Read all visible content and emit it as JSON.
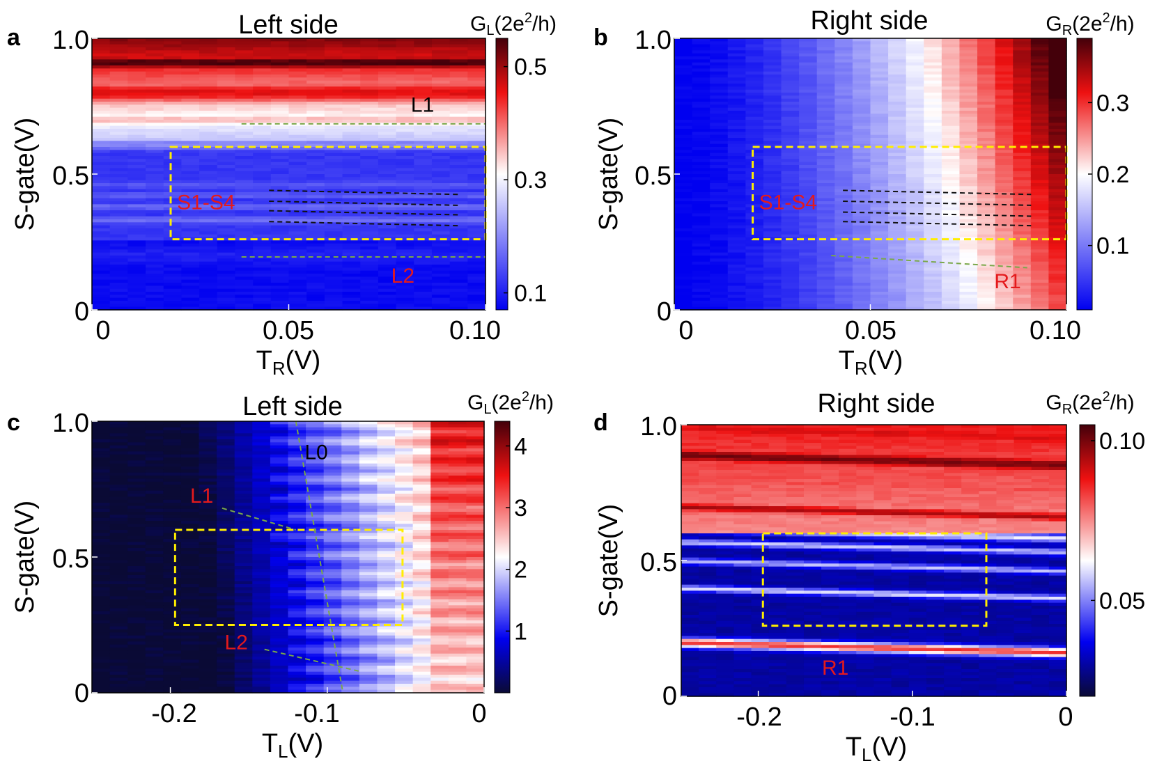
{
  "colors": {
    "annotation_red": "#e41a1c",
    "annotation_black": "#000000",
    "box_yellow": "#ffee00",
    "guide_green": "#7aa84a",
    "guide_black": "#111111"
  },
  "chart_data": [
    {
      "id": "a",
      "panel_letter": "a",
      "type": "heatmap",
      "title": "Left side",
      "xlabel_main": "T",
      "xlabel_sub": "R",
      "xlabel_unit": "(V)",
      "ylabel": "S-gate(V)",
      "xlim": [
        0,
        0.1
      ],
      "ylim": [
        0,
        1.0
      ],
      "xticks": [
        0,
        0.05,
        0.1
      ],
      "xtick_labels": [
        "0",
        "0.05",
        "0.10"
      ],
      "yticks": [
        0,
        0.5,
        1.0
      ],
      "ytick_labels": [
        "0",
        "0.5",
        "1.0"
      ],
      "colorbar": {
        "label_pre": "G",
        "label_sub": "L",
        "label_mid": "(2e",
        "label_sup": "2",
        "label_post": "/h)",
        "range": [
          0.07,
          0.55
        ],
        "ticks": [
          0.1,
          0.3,
          0.5
        ],
        "tick_labels": [
          "0.1",
          "0.3",
          "0.5"
        ]
      },
      "box": {
        "x": [
          0.02,
          0.1
        ],
        "y": [
          0.26,
          0.6
        ]
      },
      "guides": [
        {
          "color": "green",
          "x": [
            0.038,
            0.1
          ],
          "y": [
            0.685,
            0.685
          ]
        },
        {
          "color": "green",
          "x": [
            0.038,
            0.1
          ],
          "y": [
            0.195,
            0.195
          ]
        },
        {
          "color": "black",
          "x": [
            0.045,
            0.093
          ],
          "y": [
            0.44,
            0.425
          ]
        },
        {
          "color": "black",
          "x": [
            0.045,
            0.093
          ],
          "y": [
            0.4,
            0.385
          ]
        },
        {
          "color": "black",
          "x": [
            0.045,
            0.093
          ],
          "y": [
            0.365,
            0.35
          ]
        },
        {
          "color": "black",
          "x": [
            0.045,
            0.093
          ],
          "y": [
            0.325,
            0.31
          ]
        }
      ],
      "annotations": [
        {
          "text": "L1",
          "x": 0.084,
          "y": 0.73,
          "color": "black"
        },
        {
          "text": "S1-S4",
          "x": 0.029,
          "y": 0.37,
          "color": "red"
        },
        {
          "text": "L2",
          "x": 0.079,
          "y": 0.1,
          "color": "red"
        }
      ],
      "bands": [
        {
          "y": 0.97,
          "v": 0.5,
          "w": 0.03
        },
        {
          "y": 0.91,
          "v": 0.55,
          "w": 0.03
        },
        {
          "y": 0.8,
          "v": 0.46,
          "w": 0.05
        },
        {
          "y": 0.7,
          "v": 0.35,
          "w": 0.03
        },
        {
          "y": 0.61,
          "v": 0.2,
          "w": 0.02
        },
        {
          "y": 0.46,
          "v": 0.15,
          "w": 0.015
        },
        {
          "y": 0.42,
          "v": 0.16,
          "w": 0.012
        },
        {
          "y": 0.38,
          "v": 0.17,
          "w": 0.012
        },
        {
          "y": 0.33,
          "v": 0.18,
          "w": 0.012
        },
        {
          "y": 0.2,
          "v": 0.1,
          "w": 0.02
        }
      ],
      "baseline": 0.08
    },
    {
      "id": "b",
      "panel_letter": "b",
      "type": "heatmap",
      "title": "Right side",
      "xlabel_main": "T",
      "xlabel_sub": "R",
      "xlabel_unit": "(V)",
      "ylabel": "S-gate(V)",
      "xlim": [
        0,
        0.1
      ],
      "ylim": [
        0,
        1.0
      ],
      "xticks": [
        0,
        0.05,
        0.1
      ],
      "xtick_labels": [
        "0",
        "0.05",
        "0.10"
      ],
      "yticks": [
        0,
        0.5,
        1.0
      ],
      "ytick_labels": [
        "0",
        "0.5",
        "1.0"
      ],
      "colorbar": {
        "label_pre": "G",
        "label_sub": "R",
        "label_mid": "(2e",
        "label_sup": "2",
        "label_post": "/h)",
        "range": [
          0.01,
          0.39
        ],
        "ticks": [
          0.1,
          0.2,
          0.3
        ],
        "tick_labels": [
          "0.1",
          "0.2",
          "0.3"
        ]
      },
      "box": {
        "x": [
          0.02,
          0.1
        ],
        "y": [
          0.26,
          0.6
        ]
      },
      "guides": [
        {
          "color": "green",
          "x": [
            0.04,
            0.09
          ],
          "y": [
            0.2,
            0.155
          ]
        },
        {
          "color": "black",
          "x": [
            0.043,
            0.091
          ],
          "y": [
            0.44,
            0.425
          ]
        },
        {
          "color": "black",
          "x": [
            0.043,
            0.091
          ],
          "y": [
            0.4,
            0.385
          ]
        },
        {
          "color": "black",
          "x": [
            0.043,
            0.091
          ],
          "y": [
            0.36,
            0.345
          ]
        },
        {
          "color": "black",
          "x": [
            0.043,
            0.091
          ],
          "y": [
            0.325,
            0.31
          ]
        }
      ],
      "annotations": [
        {
          "text": "S1-S4",
          "x": 0.029,
          "y": 0.37,
          "color": "red"
        },
        {
          "text": "R1",
          "x": 0.085,
          "y": 0.08,
          "color": "red"
        }
      ],
      "bands": [],
      "baseline": 0.02
    },
    {
      "id": "c",
      "panel_letter": "c",
      "type": "heatmap",
      "title": "Left side",
      "xlabel_main": "T",
      "xlabel_sub": "L",
      "xlabel_unit": "(V)",
      "ylabel": "S-gate(V)",
      "xlim": [
        -0.25,
        0
      ],
      "ylim": [
        0,
        1.0
      ],
      "xticks": [
        -0.2,
        -0.1,
        0
      ],
      "xtick_labels": [
        "-0.2",
        "-0.1",
        "0"
      ],
      "yticks": [
        0,
        0.5,
        1.0
      ],
      "ytick_labels": [
        "0",
        "0.5",
        "1.0"
      ],
      "colorbar": {
        "label_pre": "G",
        "label_sub": "L",
        "label_mid": "(2e",
        "label_sup": "2",
        "label_post": "/h)",
        "range": [
          0.0,
          4.4
        ],
        "ticks": [
          1,
          2,
          3,
          4
        ],
        "tick_labels": [
          "1",
          "2",
          "3",
          "4"
        ]
      },
      "box": {
        "x": [
          -0.197,
          -0.052
        ],
        "y": [
          0.25,
          0.6
        ]
      },
      "guides": [
        {
          "color": "green",
          "x": [
            -0.12,
            -0.09
          ],
          "y": [
            1.0,
            0.0
          ]
        },
        {
          "color": "green",
          "x": [
            -0.167,
            -0.12
          ],
          "y": [
            0.68,
            0.6
          ]
        },
        {
          "color": "green",
          "x": [
            -0.14,
            -0.08
          ],
          "y": [
            0.16,
            0.08
          ]
        }
      ],
      "annotations": [
        {
          "text": "L0",
          "x": -0.107,
          "y": 0.86,
          "color": "black"
        },
        {
          "text": "L1",
          "x": -0.18,
          "y": 0.7,
          "color": "red"
        },
        {
          "text": "L2",
          "x": -0.158,
          "y": 0.16,
          "color": "red"
        }
      ],
      "bands": [],
      "baseline": 0.3
    },
    {
      "id": "d",
      "panel_letter": "d",
      "type": "heatmap",
      "title": "Right side",
      "xlabel_main": "T",
      "xlabel_sub": "L",
      "xlabel_unit": "(V)",
      "ylabel": "S-gate(V)",
      "xlim": [
        -0.25,
        0
      ],
      "ylim": [
        0,
        1.0
      ],
      "xticks": [
        -0.2,
        -0.1,
        0
      ],
      "xtick_labels": [
        "-0.2",
        "-0.1",
        "0"
      ],
      "yticks": [
        0,
        0.5,
        1.0
      ],
      "ytick_labels": [
        "0",
        "0.5",
        "1.0"
      ],
      "colorbar": {
        "label_pre": "G",
        "label_sub": "R",
        "label_mid": "(2e",
        "label_sup": "2",
        "label_post": "/h)",
        "range": [
          0.02,
          0.105
        ],
        "ticks": [
          0.05,
          0.1
        ],
        "tick_labels": [
          "0.05",
          "0.10"
        ]
      },
      "box": {
        "x": [
          -0.197,
          -0.052
        ],
        "y": [
          0.26,
          0.6
        ]
      },
      "guides": [],
      "annotations": [
        {
          "text": "R1",
          "x": -0.15,
          "y": 0.08,
          "color": "red"
        }
      ],
      "bands": [
        {
          "y": 0.95,
          "v": 0.09,
          "w": 0.04
        },
        {
          "y": 0.85,
          "v": 0.1,
          "w": 0.03
        },
        {
          "y": 0.76,
          "v": 0.082,
          "w": 0.03
        },
        {
          "y": 0.66,
          "v": 0.095,
          "w": 0.02
        },
        {
          "y": 0.58,
          "v": 0.06,
          "w": 0.01
        },
        {
          "y": 0.53,
          "v": 0.058,
          "w": 0.008
        },
        {
          "y": 0.46,
          "v": 0.056,
          "w": 0.008
        },
        {
          "y": 0.36,
          "v": 0.06,
          "w": 0.008
        },
        {
          "y": 0.16,
          "v": 0.085,
          "w": 0.012
        }
      ],
      "baseline": 0.03
    }
  ]
}
